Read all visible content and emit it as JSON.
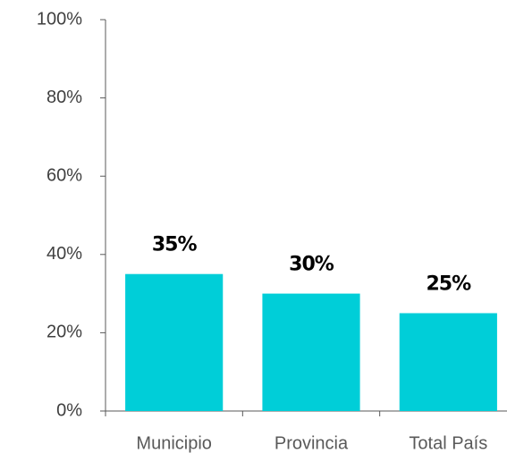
{
  "chart_data": {
    "type": "bar",
    "categories": [
      "Municipio",
      "Provincia",
      "Total País"
    ],
    "values": [
      35,
      30,
      25
    ],
    "value_labels": [
      "35%",
      "30%",
      "25%"
    ],
    "color": "#00ced8",
    "ylim": [
      0,
      100
    ],
    "yticks": [
      {
        "value": 0,
        "label": "0%"
      },
      {
        "value": 20,
        "label": "20%"
      },
      {
        "value": 40,
        "label": "40%"
      },
      {
        "value": 60,
        "label": "60%"
      },
      {
        "value": 80,
        "label": "80%"
      },
      {
        "value": 100,
        "label": "100%"
      }
    ],
    "grid": false
  }
}
